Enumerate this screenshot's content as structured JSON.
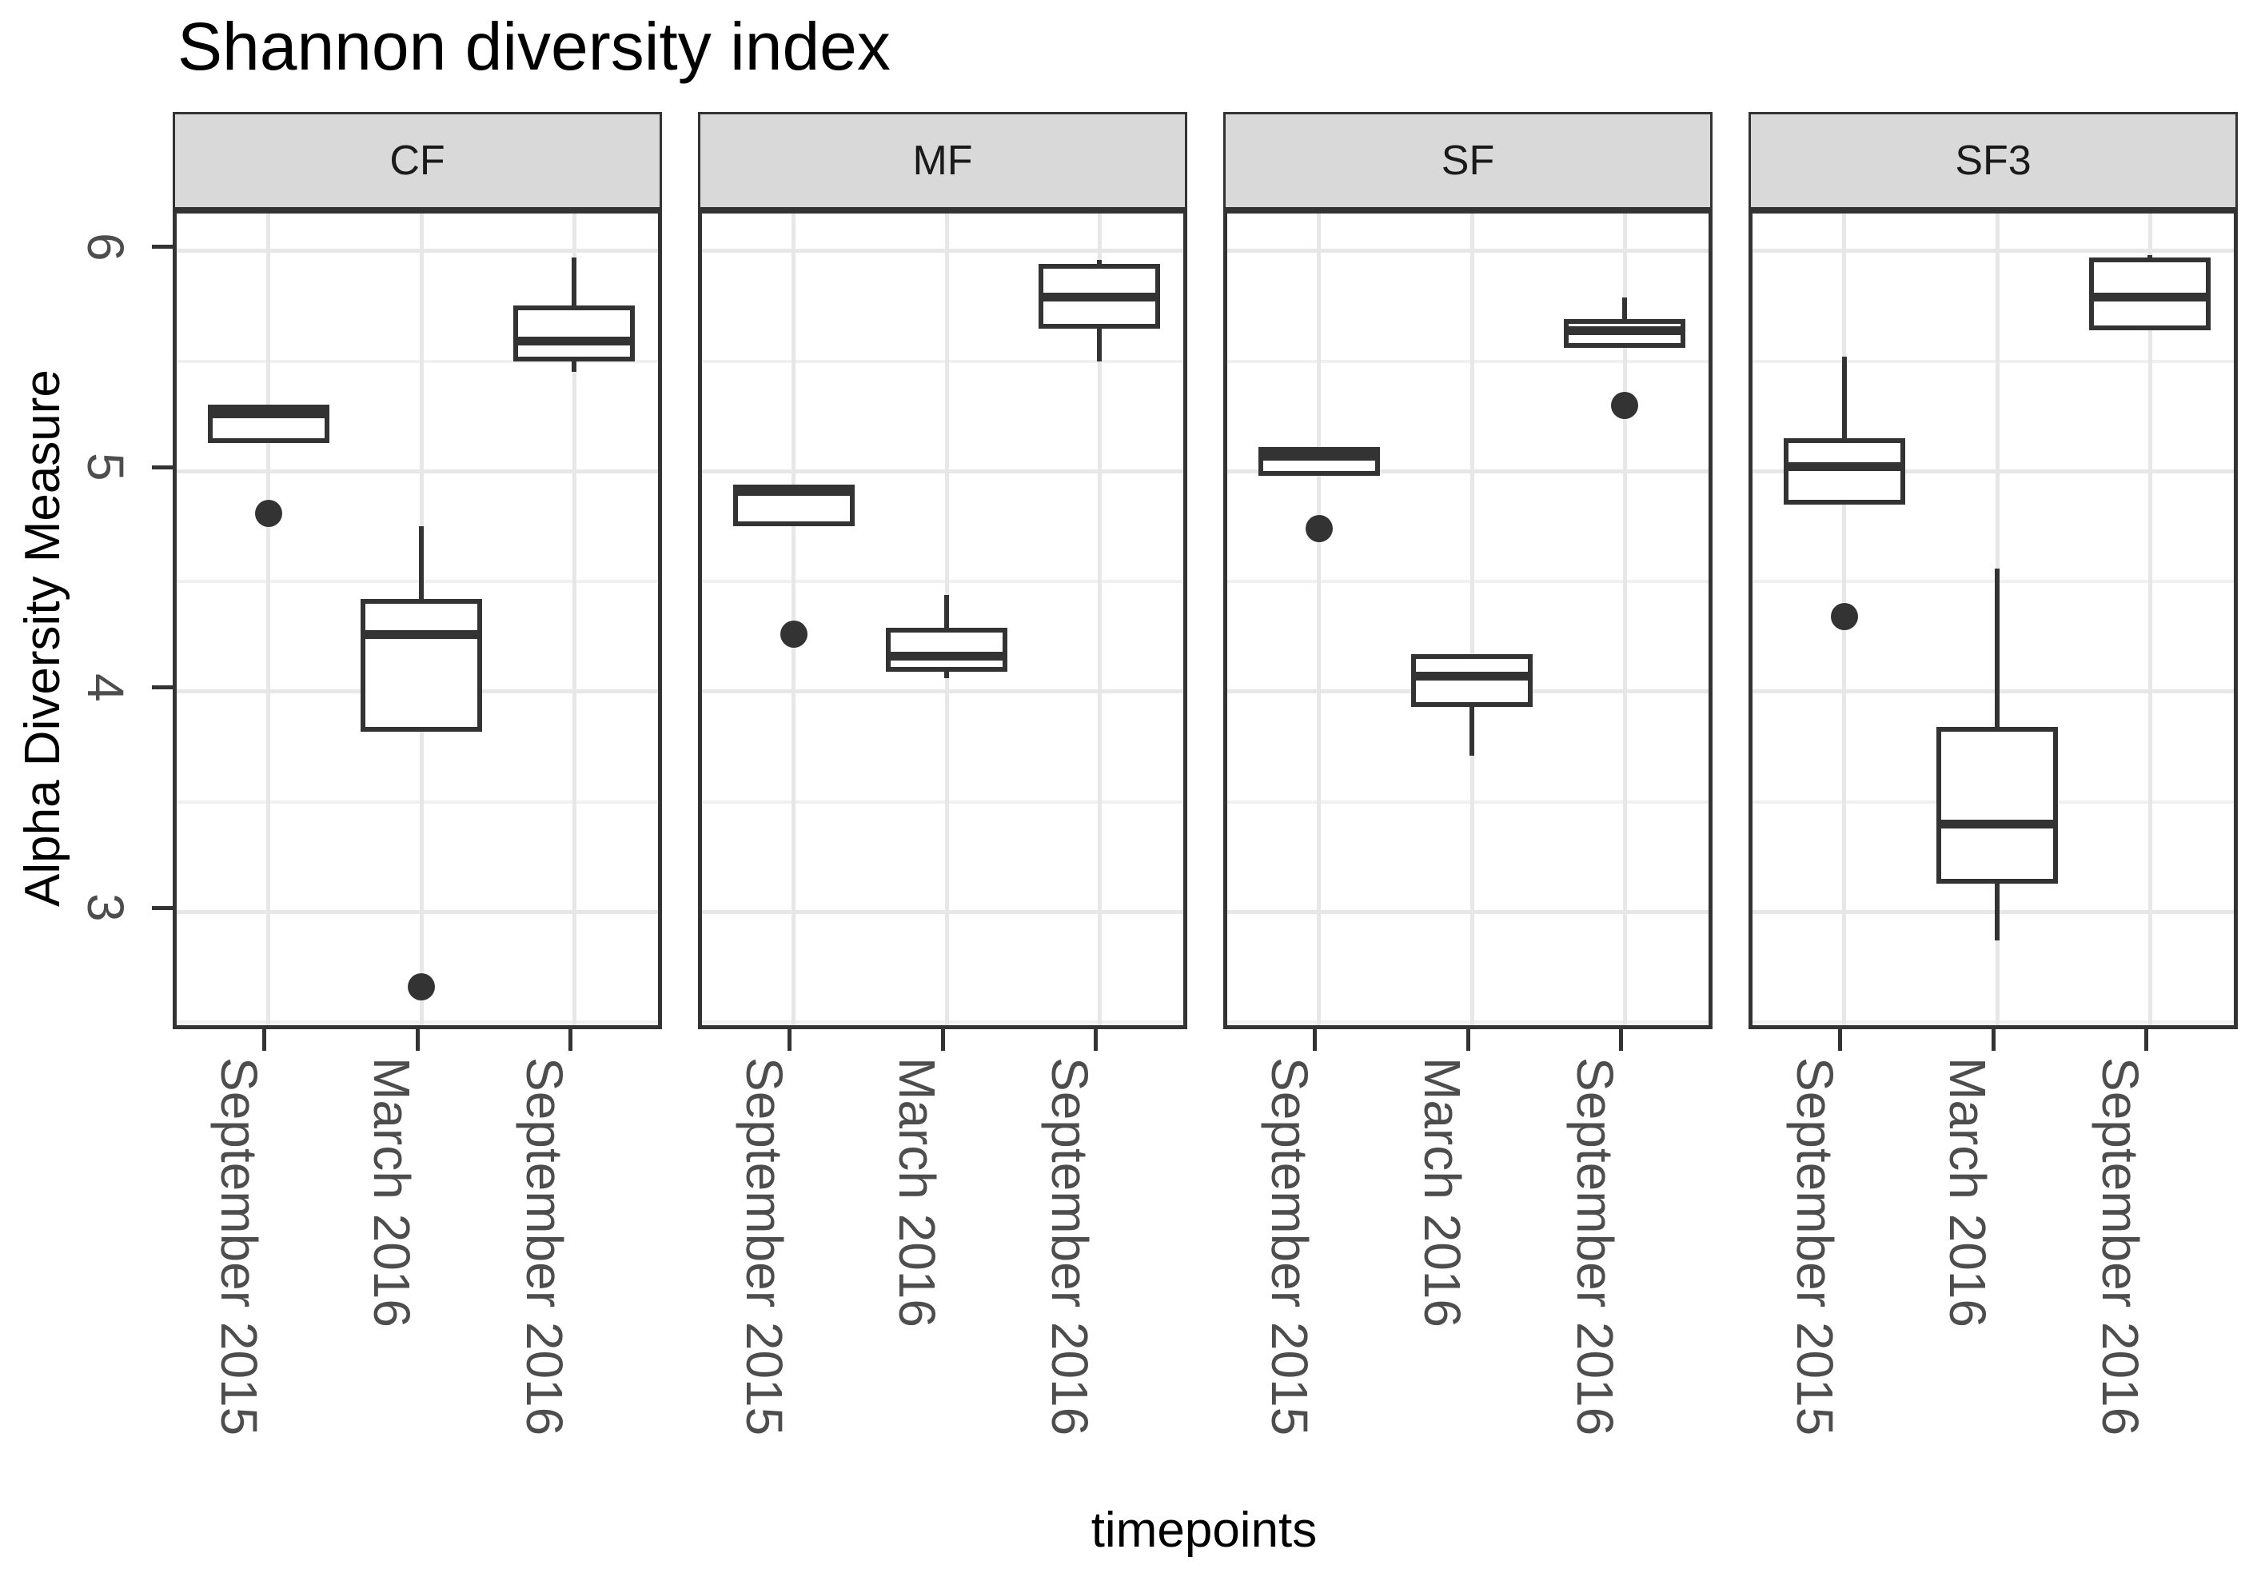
{
  "title": "Shannon diversity index",
  "chart_data": {
    "type": "boxplot",
    "title": "Shannon diversity index",
    "xlabel": "timepoints",
    "ylabel": "Alpha Diversity Measure",
    "ylim": [
      2.45,
      6.17
    ],
    "yticks": [
      3,
      4,
      5,
      6
    ],
    "yminorticks": [
      2.5,
      3.5,
      4.5,
      5.5
    ],
    "grid": "on",
    "legend": "none",
    "categories": [
      "September 2015",
      "March 2016",
      "September 2016"
    ],
    "facets": [
      {
        "label": "CF",
        "boxes": [
          {
            "category": "September 2015",
            "low": 5.14,
            "q1": 5.14,
            "median": 5.26,
            "q3": 5.29,
            "high": 5.29,
            "outliers": [
              4.81
            ]
          },
          {
            "category": "March 2016",
            "low": 3.83,
            "q1": 3.83,
            "median": 4.26,
            "q3": 4.41,
            "high": 4.75,
            "outliers": [
              2.66
            ]
          },
          {
            "category": "September 2016",
            "low": 5.45,
            "q1": 5.51,
            "median": 5.59,
            "q3": 5.74,
            "high": 5.97,
            "outliers": []
          }
        ]
      },
      {
        "label": "MF",
        "boxes": [
          {
            "category": "September 2015",
            "low": 4.76,
            "q1": 4.76,
            "median": 4.91,
            "q3": 4.93,
            "high": 4.93,
            "outliers": [
              4.26
            ]
          },
          {
            "category": "March 2016",
            "low": 4.06,
            "q1": 4.1,
            "median": 4.16,
            "q3": 4.28,
            "high": 4.44,
            "outliers": []
          },
          {
            "category": "September 2016",
            "low": 5.5,
            "q1": 5.66,
            "median": 5.79,
            "q3": 5.93,
            "high": 5.96,
            "outliers": []
          }
        ]
      },
      {
        "label": "SF",
        "boxes": [
          {
            "category": "September 2015",
            "low": 4.99,
            "q1": 4.99,
            "median": 5.07,
            "q3": 5.1,
            "high": 5.1,
            "outliers": [
              4.74
            ]
          },
          {
            "category": "March 2016",
            "low": 3.71,
            "q1": 3.94,
            "median": 4.07,
            "q3": 4.16,
            "high": 4.16,
            "outliers": []
          },
          {
            "category": "September 2016",
            "low": 5.57,
            "q1": 5.57,
            "median": 5.64,
            "q3": 5.68,
            "high": 5.79,
            "outliers": [
              5.3
            ]
          }
        ]
      },
      {
        "label": "SF3",
        "boxes": [
          {
            "category": "September 2015",
            "low": 4.86,
            "q1": 4.86,
            "median": 5.02,
            "q3": 5.14,
            "high": 5.52,
            "outliers": [
              4.34
            ]
          },
          {
            "category": "March 2016",
            "low": 2.87,
            "q1": 3.14,
            "median": 3.4,
            "q3": 3.83,
            "high": 4.56,
            "outliers": []
          },
          {
            "category": "September 2016",
            "low": 5.65,
            "q1": 5.65,
            "median": 5.79,
            "q3": 5.96,
            "high": 5.98,
            "outliers": []
          }
        ]
      }
    ],
    "colors": {
      "box_stroke": "#333333",
      "strip_background": "#D9D9D9",
      "grid_major": "#E7E7E7",
      "grid_minor": "#F0F0F0",
      "axis_text": "#4D4D4D",
      "panel_border": "#333333"
    }
  }
}
